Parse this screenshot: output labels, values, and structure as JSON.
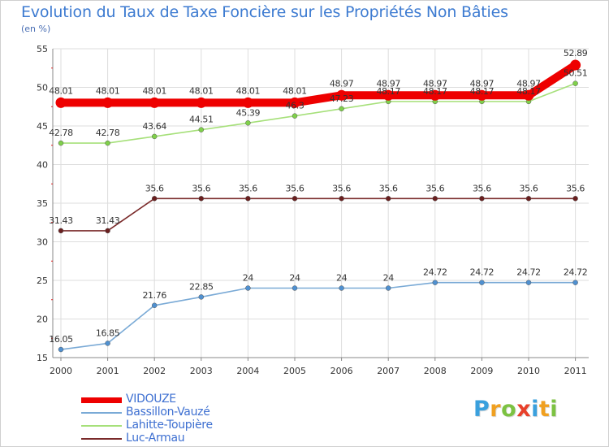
{
  "chart_data": {
    "type": "line",
    "title": "Evolution du Taux de Taxe Foncière sur les Propriétés Non Bâties",
    "subtitle": "(en %)",
    "xlabel": "",
    "ylabel": "",
    "x": [
      "2000",
      "2001",
      "2002",
      "2003",
      "2004",
      "2005",
      "2006",
      "2007",
      "2008",
      "2009",
      "2010",
      "2011"
    ],
    "ylim": [
      15,
      55
    ],
    "yticks": [
      15,
      20,
      25,
      30,
      35,
      40,
      45,
      50,
      55
    ],
    "grid": true,
    "legend_position": "bottom-left",
    "series": [
      {
        "name": "VIDOUZE",
        "color": "#ee0000",
        "values": [
          48.01,
          48.01,
          48.01,
          48.01,
          48.01,
          48.01,
          48.97,
          48.97,
          48.97,
          48.97,
          48.97,
          52.89
        ],
        "labels": [
          "48.01",
          "48.01",
          "48.01",
          "48.01",
          "48.01",
          "48.01",
          "48.97",
          "48.97",
          "48.97",
          "48.97",
          "48.97",
          "52.89"
        ]
      },
      {
        "name": "Bassillon-Vauzé",
        "color": "#7aaad6",
        "marker_color": "#4f90d0",
        "values": [
          16.05,
          16.85,
          21.76,
          22.85,
          24,
          24,
          24,
          24,
          24.72,
          24.72,
          24.72,
          24.72
        ],
        "labels": [
          "16.05",
          "16.85",
          "21.76",
          "22.85",
          "24",
          "24",
          "24",
          "24",
          "24.72",
          "24.72",
          "24.72",
          "24.72"
        ]
      },
      {
        "name": "Lahitte-Toupière",
        "color": "#a6e07a",
        "marker_color": "#7fd04a",
        "values": [
          42.78,
          42.78,
          43.64,
          44.51,
          45.39,
          46.3,
          47.23,
          48.17,
          48.17,
          48.17,
          48.17,
          50.51
        ],
        "labels": [
          "42.78",
          "42.78",
          "43.64",
          "44.51",
          "45.39",
          "46.3",
          "47.23",
          "48.17",
          "48.17",
          "48.17",
          "48.17",
          "50.51"
        ]
      },
      {
        "name": "Luc-Armau",
        "color": "#7a2a2a",
        "marker_color": "#6a1f1f",
        "values": [
          31.43,
          31.43,
          35.6,
          35.6,
          35.6,
          35.6,
          35.6,
          35.6,
          35.6,
          35.6,
          35.6,
          35.6
        ],
        "labels": [
          "31.43",
          "31.43",
          "35.6",
          "35.6",
          "35.6",
          "35.6",
          "35.6",
          "35.6",
          "35.6",
          "35.6",
          "35.6",
          "35.6"
        ]
      }
    ]
  },
  "legend": {
    "items": [
      "VIDOUZE",
      "Bassillon-Vauzé",
      "Lahitte-Toupière",
      "Luc-Armau"
    ]
  },
  "logo": {
    "letters": [
      "P",
      "r",
      "o",
      "x",
      "i",
      "t",
      "i"
    ],
    "colors": [
      "#3aa0dd",
      "#f0a020",
      "#7cc242",
      "#e8402a",
      "#3aa0dd",
      "#f0a020",
      "#7cc242"
    ]
  }
}
